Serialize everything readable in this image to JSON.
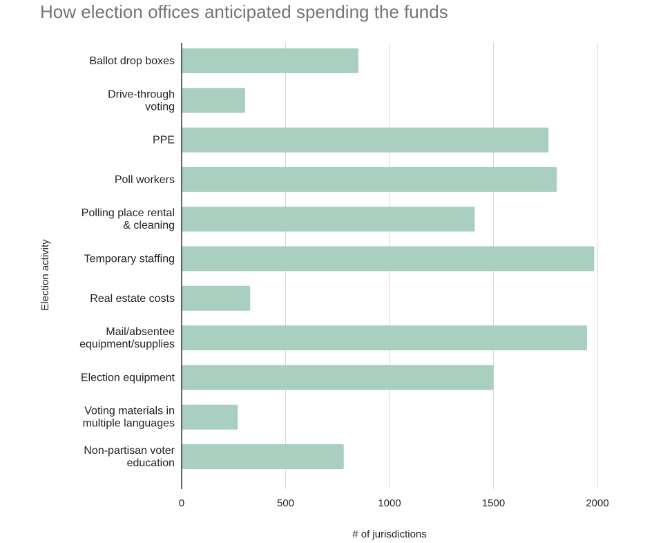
{
  "chart_data": {
    "type": "bar",
    "orientation": "horizontal",
    "title": "How election offices anticipated spending the funds",
    "xlabel": "# of jurisdictions",
    "ylabel": "Election activity",
    "categories": [
      [
        "Ballot drop boxes"
      ],
      [
        "Drive-through",
        "voting"
      ],
      [
        "PPE"
      ],
      [
        "Poll workers"
      ],
      [
        "Polling place rental",
        "& cleaning"
      ],
      [
        "Temporary staffing"
      ],
      [
        "Real estate costs"
      ],
      [
        "Mail/absentee",
        "equipment/supplies"
      ],
      [
        "Election equipment"
      ],
      [
        "Voting materials in",
        "multiple languages"
      ],
      [
        "Non-partisan voter",
        "education"
      ]
    ],
    "values": [
      850,
      305,
      1765,
      1805,
      1410,
      1985,
      330,
      1950,
      1500,
      270,
      780
    ],
    "xlim": [
      0,
      2000
    ],
    "xticks": [
      "0",
      "500",
      "1000",
      "1500",
      "2000"
    ],
    "grid": true,
    "bar_color": "#a8cfc0"
  }
}
